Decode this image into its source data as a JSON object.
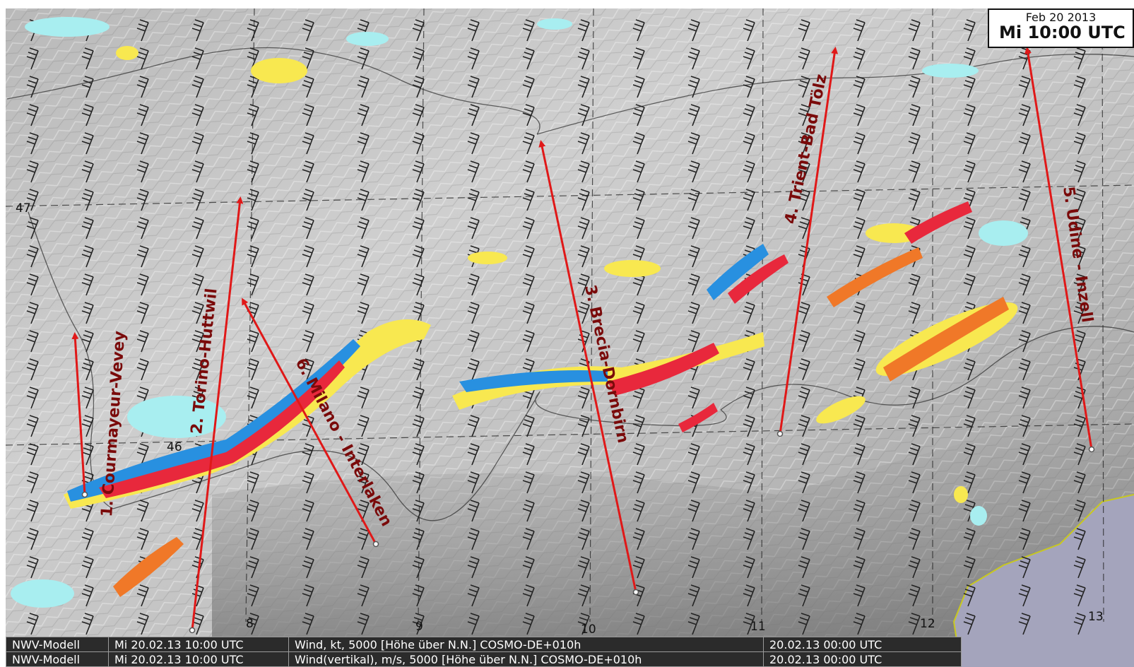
{
  "timestamp": {
    "date": "Feb 20 2013",
    "time": "Mi 10:00 UTC"
  },
  "longitude_labels": [
    "8",
    "9",
    "10",
    "11",
    "12",
    "13"
  ],
  "latitude_labels": [
    "47",
    "46"
  ],
  "routes": [
    {
      "label": "1. Courmayeur-Vevey"
    },
    {
      "label": "2. Torino-Huttwil"
    },
    {
      "label": "3. Brecia-Dornbirn"
    },
    {
      "label": "4. Trient-Bad Tölz"
    },
    {
      "label": "5. Udine - Inzell"
    },
    {
      "label": "6. Milano - Interlaken"
    }
  ],
  "info_rows": [
    {
      "model": "NWV-Modell",
      "valid": "Mi 20.02.13 10:00 UTC",
      "field": "Wind, kt, 5000 [Höhe über N.N.] COSMO-DE+010h",
      "run": "20.02.13 00:00 UTC"
    },
    {
      "model": "NWV-Modell",
      "valid": "Mi 20.02.13 10:00 UTC",
      "field": "Wind(vertikal), m/s, 5000 [Höhe über N.N.] COSMO-DE+010h",
      "run": "20.02.13 00:00 UTC"
    }
  ],
  "colors": {
    "route_arrow": "#e01818",
    "route_label": "#7a0a0a",
    "updraft_strong": "#e8283c",
    "updraft": "#f07828",
    "updraft_weak": "#f8e850",
    "downdraft": "#2890e0",
    "downdraft_weak": "#a8eef0",
    "sea": "#a4a4bc",
    "coastline": "#c8c820"
  }
}
